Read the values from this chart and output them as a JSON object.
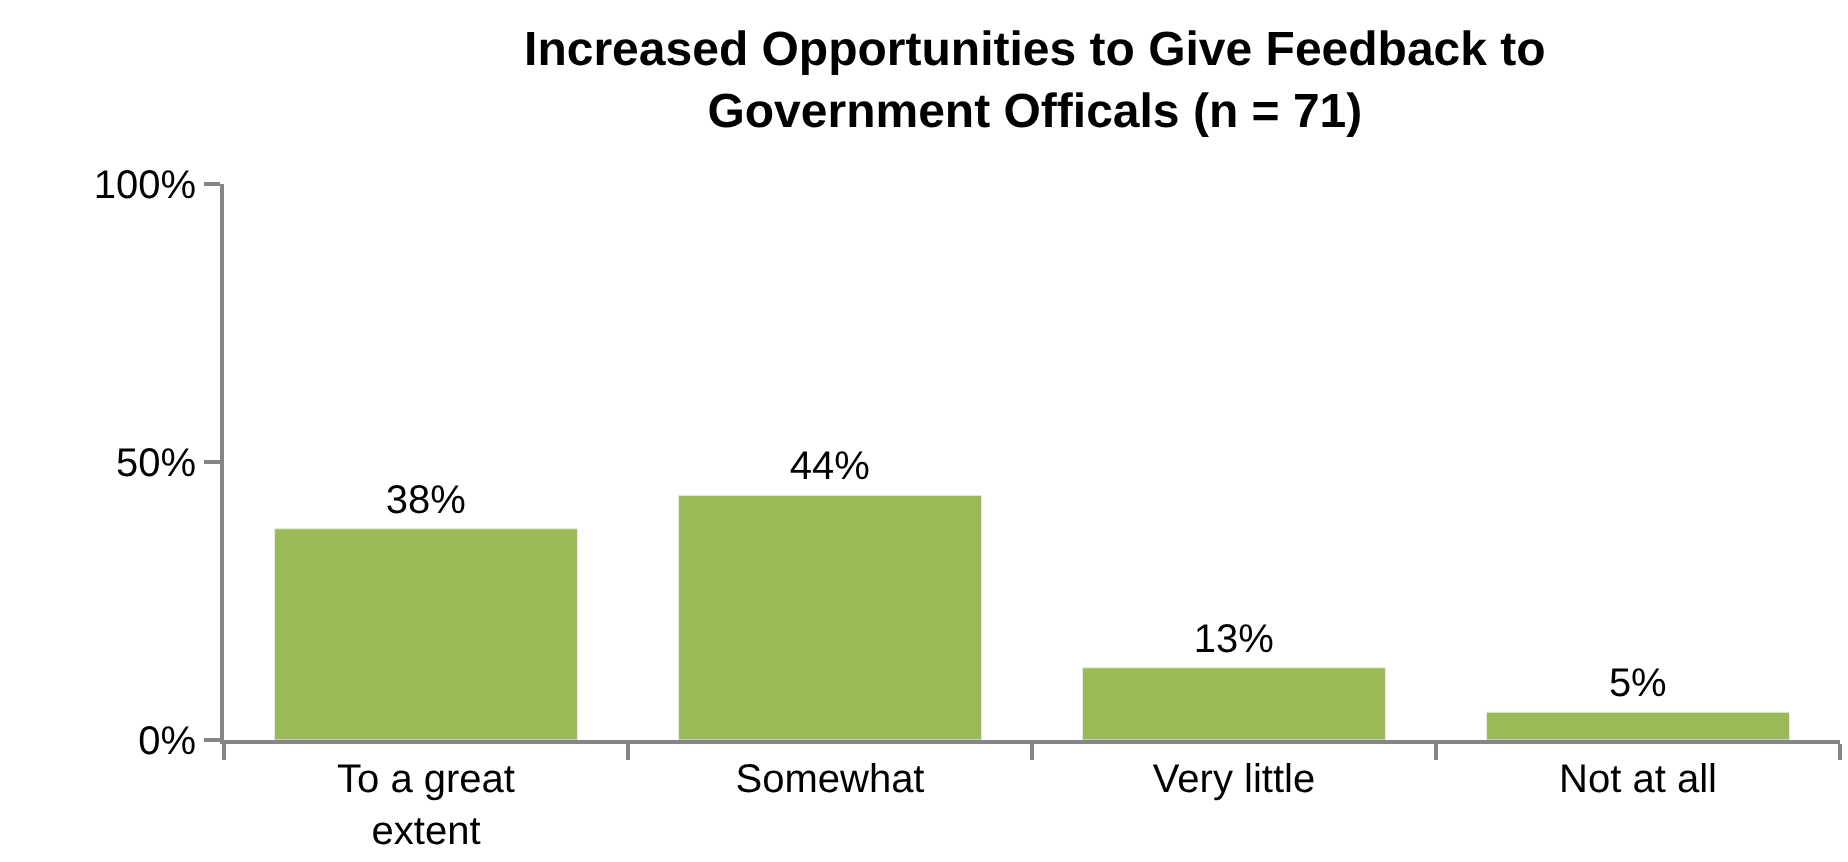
{
  "chart_data": {
    "type": "bar",
    "title": "Increased Opportunities to Give Feedback to Government Officals (n = 71)",
    "categories": [
      "To a great extent",
      "Somewhat",
      "Very little",
      "Not at all"
    ],
    "values": [
      38,
      44,
      13,
      5
    ],
    "value_labels": [
      "38%",
      "44%",
      "13%",
      "5%"
    ],
    "color": "#9bbb59",
    "ylim": [
      0,
      100
    ],
    "yticks": [
      {
        "value": 0,
        "label": "0%"
      },
      {
        "value": 50,
        "label": "50%"
      },
      {
        "value": 100,
        "label": "100%"
      }
    ],
    "legend": false
  }
}
